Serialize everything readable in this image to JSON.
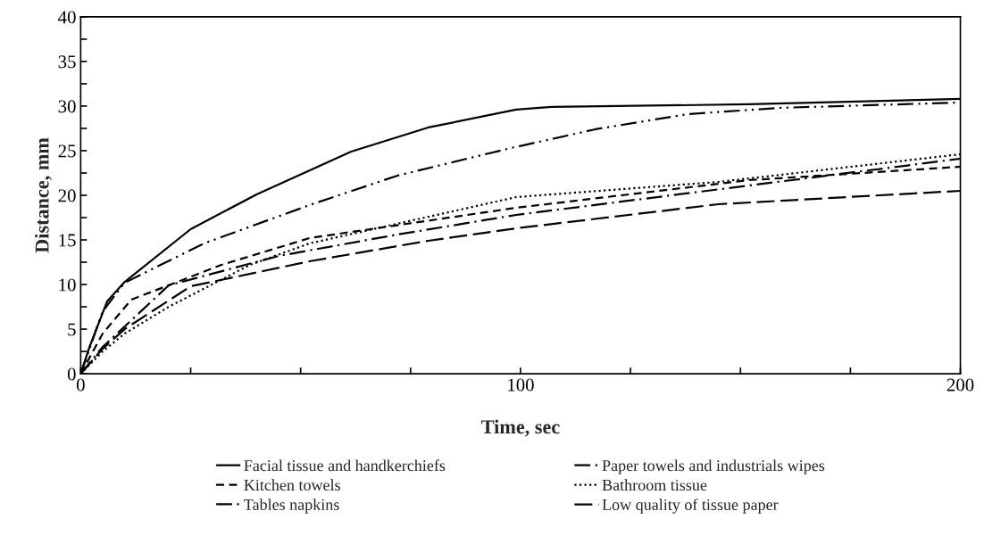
{
  "chart_data": {
    "type": "line",
    "xlabel": "Time, sec",
    "ylabel": "Distance, mm",
    "xlim": [
      0,
      200
    ],
    "ylim": [
      0,
      40
    ],
    "xticks": [
      0,
      {
        "value": 25,
        "label": null
      },
      {
        "value": 50,
        "label": null
      },
      {
        "value": 75,
        "label": null
      },
      100,
      {
        "value": 125,
        "label": null
      },
      {
        "value": 150,
        "label": null
      },
      {
        "value": 175,
        "label": null
      },
      200
    ],
    "yticks": [
      0,
      {
        "value": 2.5,
        "label": null
      },
      5,
      {
        "value": 7.5,
        "label": null
      },
      10,
      {
        "value": 12.5,
        "label": null
      },
      15,
      {
        "value": 17.5,
        "label": null
      },
      20,
      {
        "value": 22.5,
        "label": null
      },
      25,
      {
        "value": 27.5,
        "label": null
      },
      30,
      {
        "value": 32.5,
        "label": null
      },
      35,
      {
        "value": 37.5,
        "label": null
      },
      40
    ],
    "grid": false,
    "legend": "bottom",
    "marker": "none",
    "series": [
      {
        "name": "Facial tissue and handkerchiefs",
        "color": "#000000",
        "line_style": "solid",
        "x": [
          0,
          2,
          6,
          10,
          25,
          40,
          61.5,
          79,
          99,
          107,
          152,
          200
        ],
        "values": [
          0,
          3,
          8.1,
          10.3,
          16.2,
          20.1,
          24.9,
          27.6,
          29.6,
          29.9,
          30.2,
          30.8
        ]
      },
      {
        "name": "Kitchen towels",
        "color": "#000000",
        "line_style": "dashed",
        "x": [
          0,
          5,
          11.5,
          32,
          52,
          99,
          152,
          200
        ],
        "values": [
          0,
          4.5,
          8.3,
          12.2,
          15.2,
          18.6,
          21.7,
          23.2
        ]
      },
      {
        "name": "Tables napkins",
        "color": "#000000",
        "line_style": "dashdot",
        "x": [
          0,
          5,
          20,
          45,
          72,
          99,
          152,
          200
        ],
        "values": [
          0,
          3,
          9.9,
          13.2,
          15.6,
          17.8,
          21.1,
          24.1
        ]
      },
      {
        "name": "Paper towels and industrials wipes",
        "color": "#000000",
        "line_style": "dashdotdot",
        "x": [
          0,
          5,
          10,
          28,
          52,
          72,
          97,
          117,
          138,
          159,
          200
        ],
        "values": [
          0,
          7,
          10.2,
          14.6,
          18.9,
          22.2,
          25.2,
          27.4,
          29.1,
          29.8,
          30.4
        ]
      },
      {
        "name": "Bathroom tissue",
        "color": "#000000",
        "line_style": "dotted",
        "x": [
          0,
          5,
          10,
          20,
          38.5,
          52,
          99,
          145,
          200
        ],
        "values": [
          0,
          2.5,
          4.5,
          7.5,
          12.2,
          14.6,
          19.8,
          21.5,
          24.6
        ]
      },
      {
        "name": "Low quality of tissue paper",
        "color": "#000000",
        "line_style": "longdash",
        "x": [
          0,
          5,
          10,
          25,
          52,
          79,
          99,
          145,
          200
        ],
        "values": [
          0,
          2.8,
          5,
          9.8,
          12.6,
          14.9,
          16.3,
          19,
          20.5
        ]
      }
    ]
  }
}
